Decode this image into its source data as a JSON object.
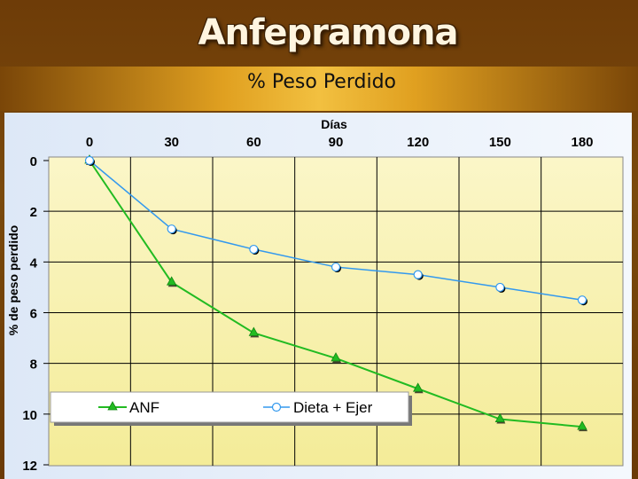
{
  "slide": {
    "title": "Anfepramona",
    "subtitle": "% Peso Perdido"
  },
  "colors": {
    "background": "#6e3c08",
    "series_anf": "#22bb22",
    "series_dieta": "#3399ee",
    "plot_area": "#fbf6c8"
  },
  "chart_data": {
    "type": "line",
    "title": "",
    "xlabel": "Días",
    "ylabel": "% de peso perdido",
    "x": [
      0,
      30,
      60,
      90,
      120,
      150,
      180
    ],
    "x_ticks": [
      "0",
      "30",
      "60",
      "90",
      "120",
      "150",
      "180"
    ],
    "y_ticks": [
      "0",
      "2",
      "4",
      "6",
      "8",
      "10",
      "12"
    ],
    "xlim": [
      0,
      180
    ],
    "ylim": [
      0,
      12
    ],
    "y_inverted": true,
    "x_axis_position": "top",
    "grid": true,
    "legend_position": "bottom-left",
    "series": [
      {
        "name": "ANF",
        "marker": "triangle",
        "values": [
          0,
          4.8,
          6.8,
          7.8,
          9.0,
          10.2,
          10.5
        ]
      },
      {
        "name": "Dieta + Ejer",
        "marker": "circle",
        "values": [
          0,
          2.7,
          3.5,
          4.2,
          4.5,
          5.0,
          5.5
        ]
      }
    ]
  }
}
